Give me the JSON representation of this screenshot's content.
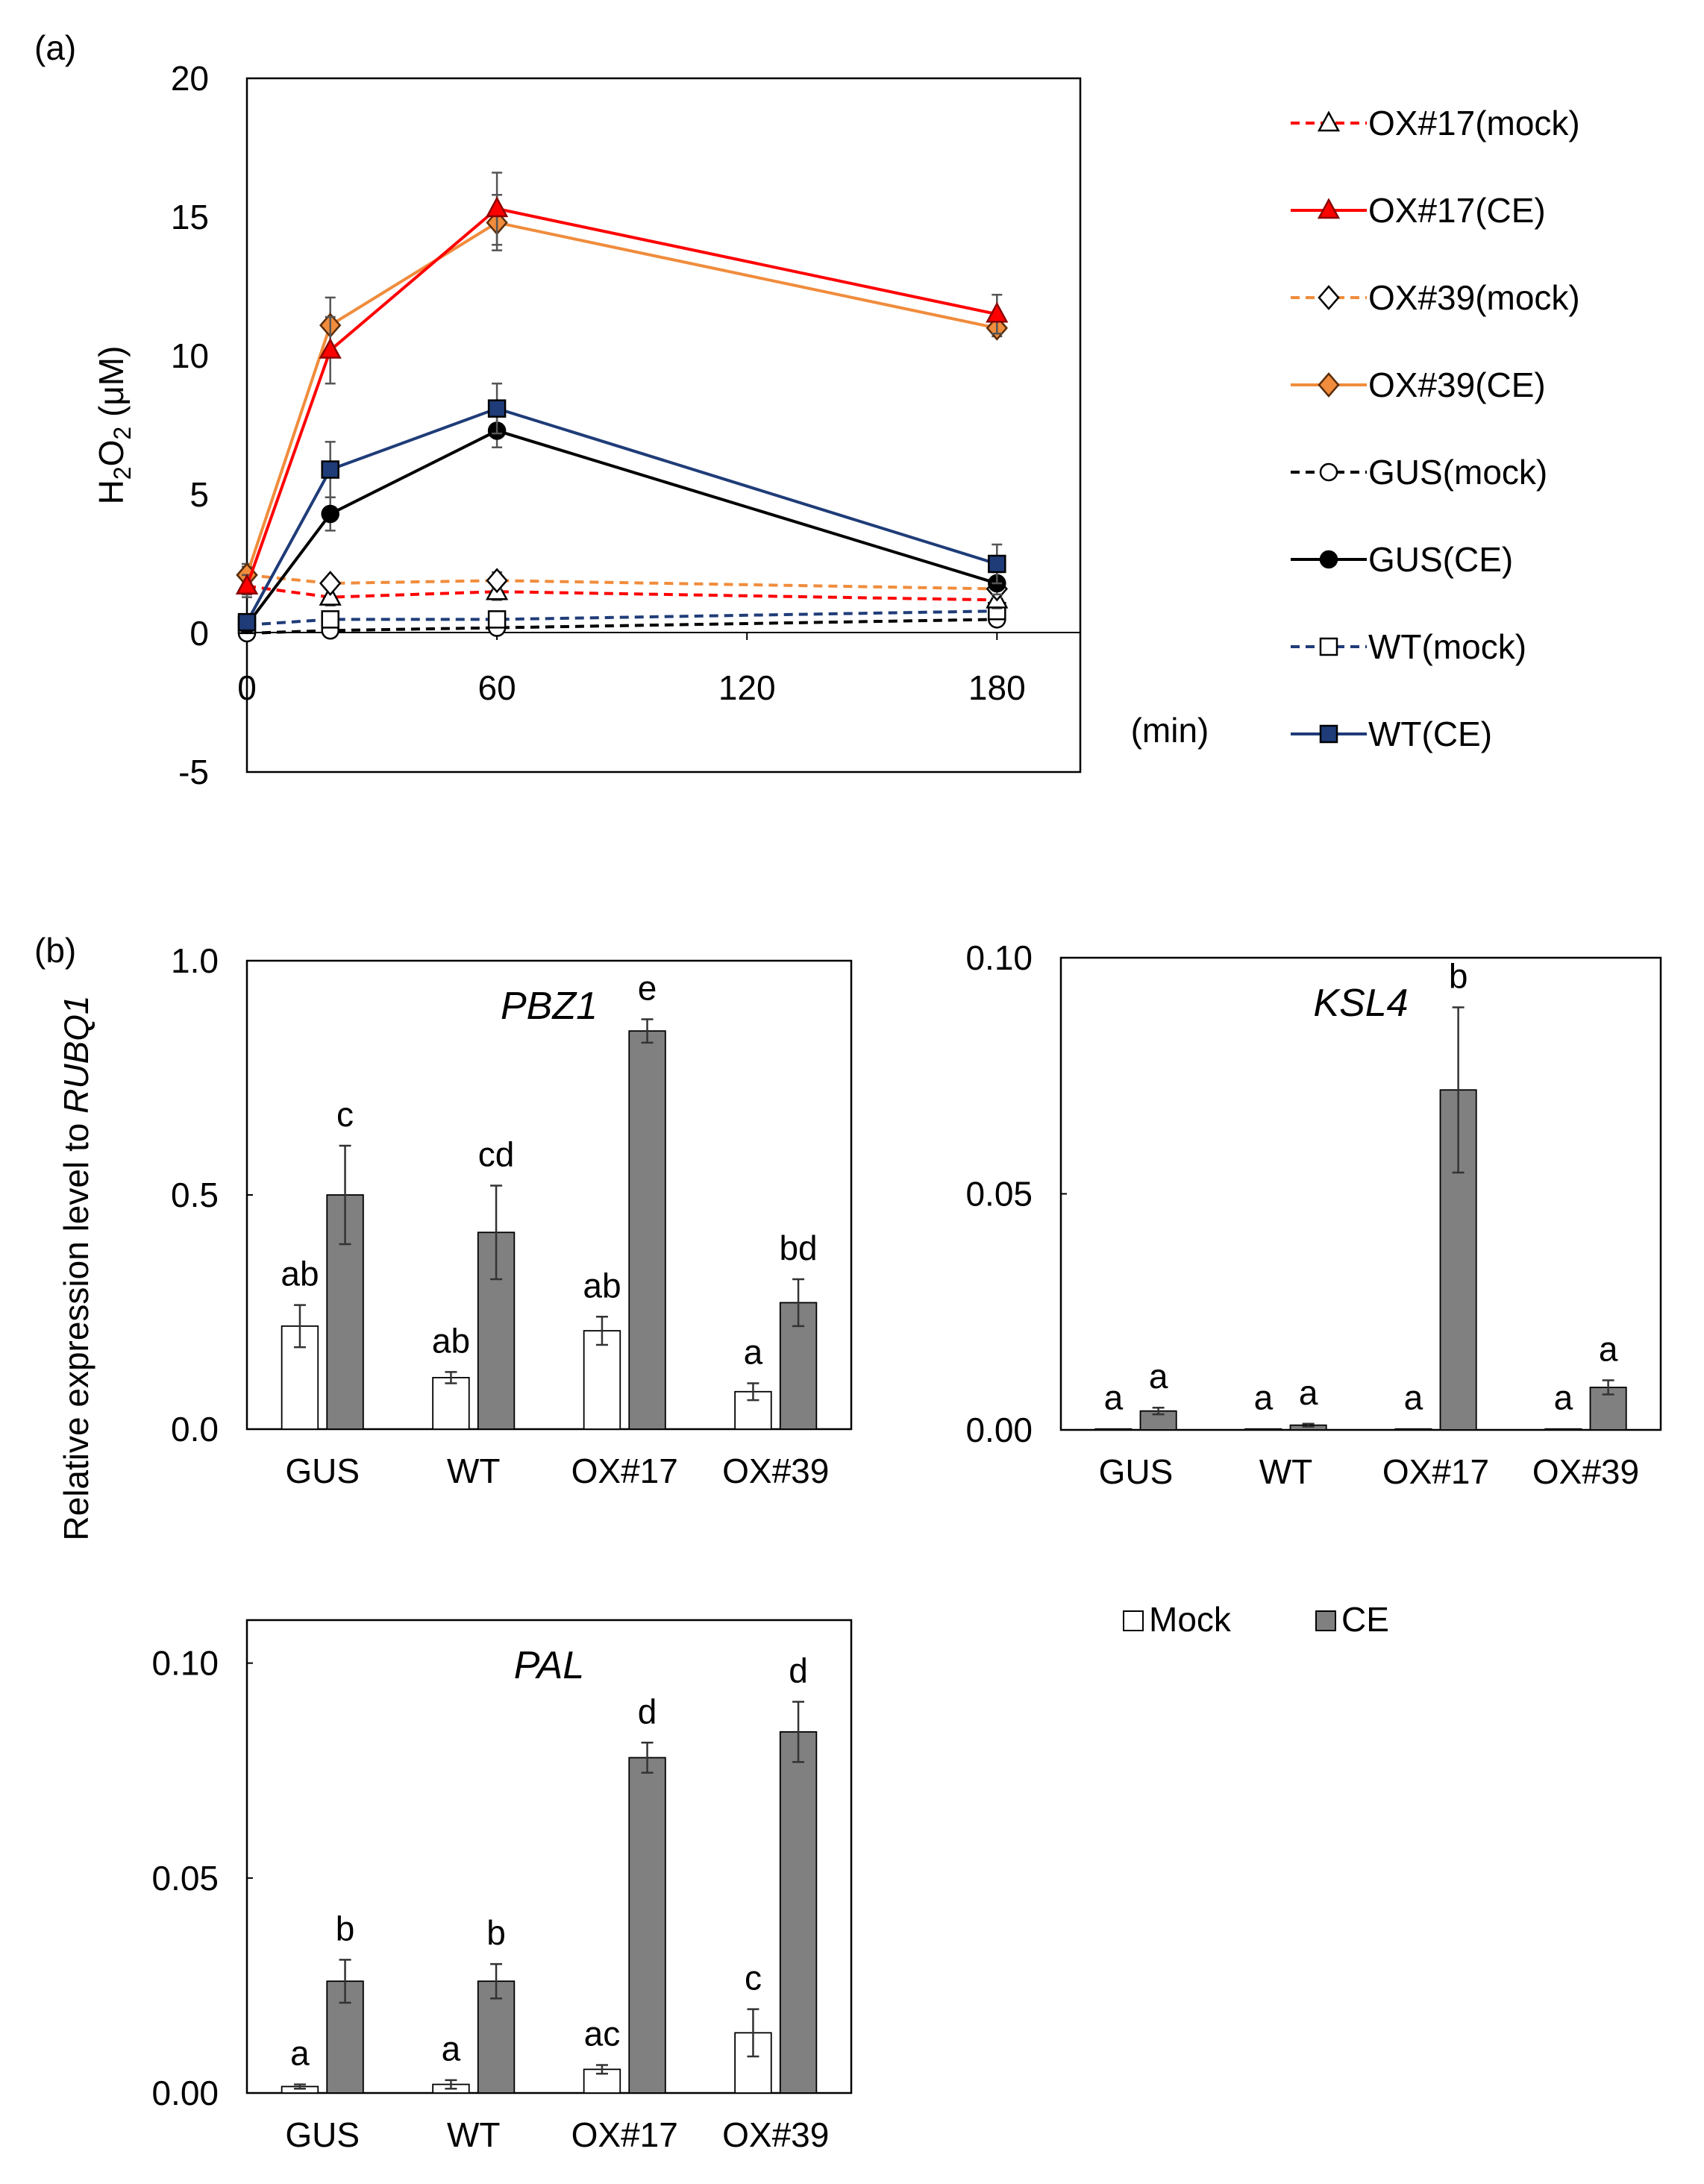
{
  "panel_labels": {
    "a": "(a)",
    "b": "(b)"
  },
  "shared_ylabel_b": {
    "prefix": "Relative expression level to ",
    "gene": "RUBQ1"
  },
  "legend_b": {
    "mock": "Mock",
    "ce": "CE"
  },
  "colors": {
    "mock_bar": "#ffffff",
    "ce_bar": "#808080",
    "red": "#ff0000",
    "orange": "#f08c3c",
    "black": "#000000",
    "navy": "#1f3c78"
  },
  "chart_data": [
    {
      "id": "h2o2",
      "type": "line",
      "ylabel": {
        "main": "H",
        "sub1": "2",
        "mid": "O",
        "sub2": "2",
        "unit": " (μM)"
      },
      "xunit": "(min)",
      "ylim": [
        -5,
        20
      ],
      "yticks": [
        "-5",
        "0",
        "5",
        "10",
        "15",
        "20"
      ],
      "xlim": [
        0,
        200
      ],
      "xticks": [
        "0",
        "60",
        "120",
        "180"
      ],
      "x": [
        0,
        20,
        60,
        180
      ],
      "series": [
        {
          "name": "OX#17(mock)",
          "color": "#ff0000",
          "dashed": true,
          "marker": "triangle",
          "filled": false,
          "values": [
            1.7,
            1.3,
            1.5,
            1.2
          ],
          "err": [
            0.3,
            0.3,
            0.3,
            0.3
          ]
        },
        {
          "name": "OX#17(CE)",
          "color": "#ff0000",
          "dashed": false,
          "marker": "triangle",
          "filled": true,
          "values": [
            1.7,
            10.2,
            15.3,
            11.5
          ],
          "err": [
            0.4,
            1.2,
            1.3,
            0.7
          ]
        },
        {
          "name": "OX#39(mock)",
          "color": "#f08c3c",
          "dashed": true,
          "marker": "diamond",
          "filled": false,
          "values": [
            2.1,
            1.8,
            1.9,
            1.6
          ],
          "err": [
            0.3,
            0.2,
            0.3,
            0.3
          ]
        },
        {
          "name": "OX#39(CE)",
          "color": "#f08c3c",
          "dashed": false,
          "marker": "diamond",
          "filled": true,
          "values": [
            2.1,
            11.1,
            14.8,
            11.0
          ],
          "err": [
            0.4,
            1.0,
            1.0,
            0.3
          ]
        },
        {
          "name": "GUS(mock)",
          "color": "#000000",
          "dashed": true,
          "marker": "circle",
          "filled": false,
          "values": [
            0.0,
            0.1,
            0.2,
            0.5
          ],
          "err": [
            0.1,
            0.1,
            0.1,
            0.1
          ]
        },
        {
          "name": "GUS(CE)",
          "color": "#000000",
          "dashed": false,
          "marker": "circle",
          "filled": true,
          "values": [
            0.3,
            4.3,
            7.3,
            1.8
          ],
          "err": [
            0.2,
            0.6,
            0.6,
            0.4
          ]
        },
        {
          "name": "WT(mock)",
          "color": "#1f3c78",
          "dashed": true,
          "marker": "square",
          "filled": false,
          "values": [
            0.3,
            0.5,
            0.5,
            0.8
          ],
          "err": [
            0.1,
            0.1,
            0.1,
            0.2
          ]
        },
        {
          "name": "WT(CE)",
          "color": "#1f3c78",
          "dashed": false,
          "marker": "square",
          "filled": true,
          "values": [
            0.4,
            5.9,
            8.1,
            2.5
          ],
          "err": [
            0.2,
            1.0,
            0.9,
            0.7
          ]
        }
      ]
    },
    {
      "id": "pbz1",
      "type": "bar",
      "title": "PBZ1",
      "categories": [
        "GUS",
        "WT",
        "OX#17",
        "OX#39"
      ],
      "ylim": [
        0,
        1.0
      ],
      "yticks": [
        "0.0",
        "0.5",
        "1.0"
      ],
      "series": [
        {
          "name": "Mock",
          "values": [
            0.22,
            0.11,
            0.21,
            0.08
          ],
          "err": [
            0.045,
            0.012,
            0.03,
            0.018
          ],
          "letters": [
            "ab",
            "ab",
            "ab",
            "a"
          ]
        },
        {
          "name": "CE",
          "values": [
            0.5,
            0.42,
            0.85,
            0.27
          ],
          "err": [
            0.105,
            0.1,
            0.025,
            0.05
          ],
          "letters": [
            "c",
            "cd",
            "e",
            "bd"
          ]
        }
      ]
    },
    {
      "id": "ksl4",
      "type": "bar",
      "title": "KSL4",
      "categories": [
        "GUS",
        "WT",
        "OX#17",
        "OX#39"
      ],
      "ylim": [
        0,
        0.1
      ],
      "yticks": [
        "0.00",
        "0.05",
        "0.10"
      ],
      "series": [
        {
          "name": "Mock",
          "values": [
            0.0002,
            0.0002,
            0.0002,
            0.0002
          ],
          "err": [
            0,
            0,
            0,
            0
          ],
          "letters": [
            "a",
            "a",
            "a",
            "a"
          ]
        },
        {
          "name": "CE",
          "values": [
            0.004,
            0.001,
            0.072,
            0.009
          ],
          "err": [
            0.0007,
            0.0003,
            0.0175,
            0.0015
          ],
          "letters": [
            "a",
            "a",
            "b",
            "a"
          ]
        }
      ]
    },
    {
      "id": "pal",
      "type": "bar",
      "title": "PAL",
      "categories": [
        "GUS",
        "WT",
        "OX#17",
        "OX#39"
      ],
      "ylim": [
        0,
        0.11
      ],
      "yticks": [
        "0.00",
        "0.05",
        "0.10"
      ],
      "series": [
        {
          "name": "Mock",
          "values": [
            0.0015,
            0.002,
            0.0055,
            0.014
          ],
          "err": [
            0.0005,
            0.001,
            0.001,
            0.0055
          ],
          "letters": [
            "a",
            "a",
            "ac",
            "c"
          ]
        },
        {
          "name": "CE",
          "values": [
            0.026,
            0.026,
            0.078,
            0.084
          ],
          "err": [
            0.005,
            0.004,
            0.0035,
            0.007
          ],
          "letters": [
            "b",
            "b",
            "d",
            "d"
          ]
        }
      ]
    }
  ]
}
